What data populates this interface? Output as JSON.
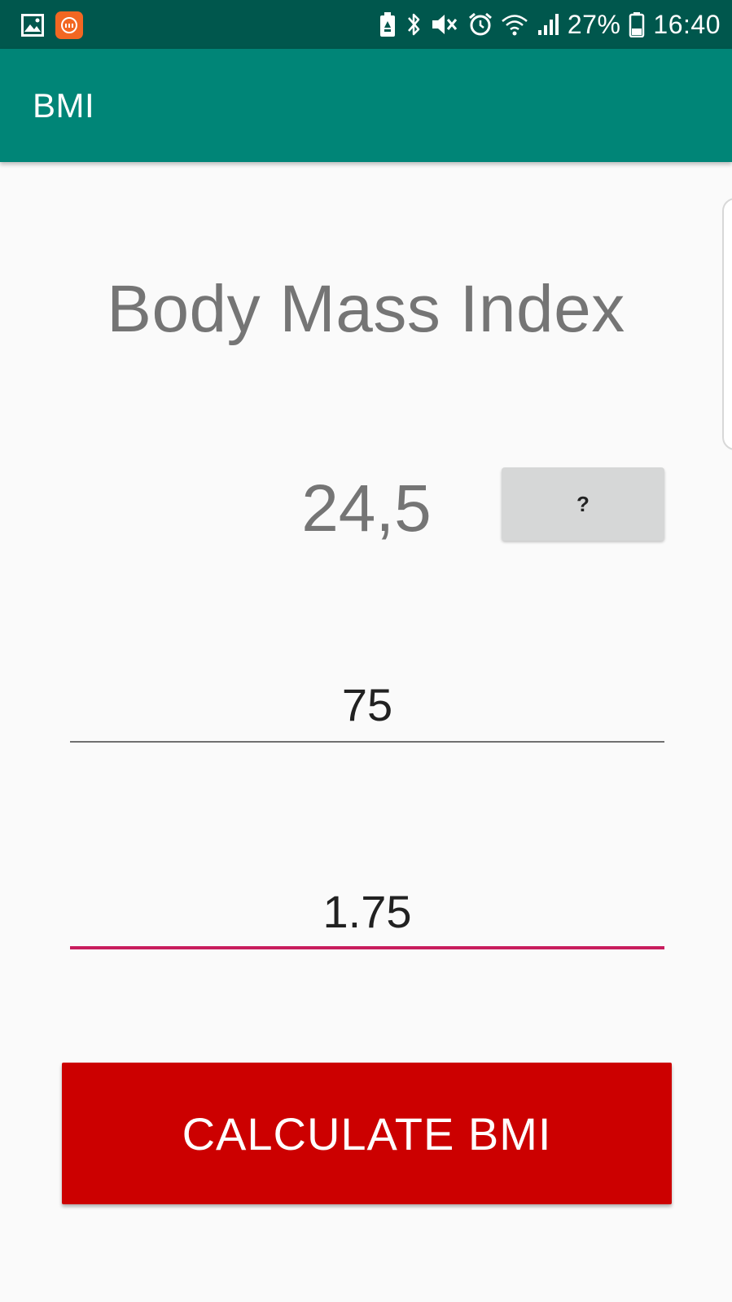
{
  "status_bar": {
    "battery": "27%",
    "time": "16:40",
    "icons": [
      "gallery-icon",
      "mi-app-icon",
      "battery-saver-icon",
      "bluetooth-icon",
      "mute-icon",
      "alarm-icon",
      "wifi-icon",
      "signal-icon",
      "battery-icon"
    ]
  },
  "app_bar": {
    "title": "BMI"
  },
  "main": {
    "heading": "Body Mass Index",
    "bmi_value": "24,5",
    "help_button_label": "?",
    "weight_value": "75",
    "height_value": "1.75",
    "calculate_label": "CALCULATE BMI"
  },
  "colors": {
    "status_bar": "#00574d",
    "app_bar": "#008577",
    "accent": "#c81d5d",
    "calculate_button": "#cc0000"
  }
}
